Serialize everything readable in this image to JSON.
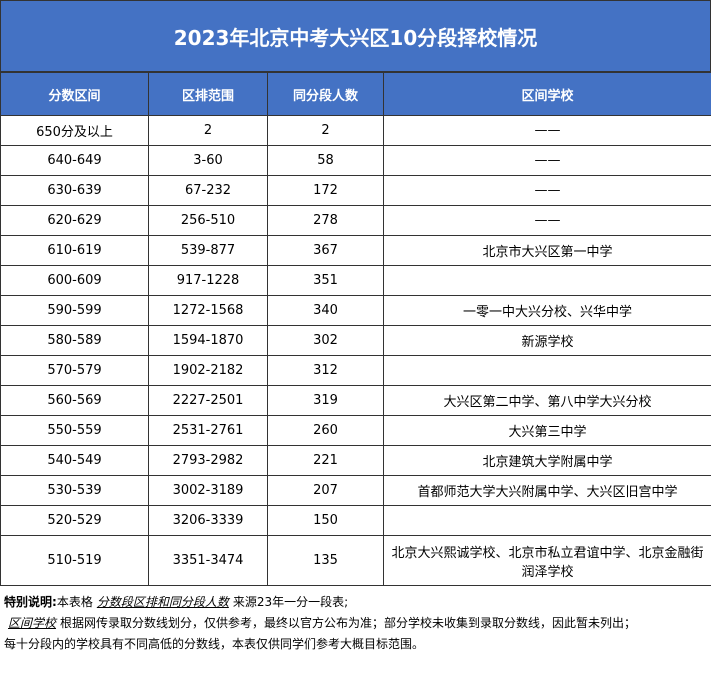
{
  "header": {
    "title": "2023年北京中考大兴区10分段择校情况"
  },
  "table": {
    "columns": [
      "分数区间",
      "区排范围",
      "同分段人数",
      "区间学校"
    ],
    "rows": [
      [
        "650分及以上",
        "2",
        "2",
        "——"
      ],
      [
        "640-649",
        "3-60",
        "58",
        "——"
      ],
      [
        "630-639",
        "67-232",
        "172",
        "——"
      ],
      [
        "620-629",
        "256-510",
        "278",
        "——"
      ],
      [
        "610-619",
        "539-877",
        "367",
        "北京市大兴区第一中学"
      ],
      [
        "600-609",
        "917-1228",
        "351",
        ""
      ],
      [
        "590-599",
        "1272-1568",
        "340",
        "一零一中大兴分校、兴华中学"
      ],
      [
        "580-589",
        "1594-1870",
        "302",
        "新源学校"
      ],
      [
        "570-579",
        "1902-2182",
        "312",
        ""
      ],
      [
        "560-569",
        "2227-2501",
        "319",
        "大兴区第二中学、第八中学大兴分校"
      ],
      [
        "550-559",
        "2531-2761",
        "260",
        "大兴第三中学"
      ],
      [
        "540-549",
        "2793-2982",
        "221",
        "北京建筑大学附属中学"
      ],
      [
        "530-539",
        "3002-3189",
        "207",
        "首都师范大学大兴附属中学、大兴区旧宫中学"
      ],
      [
        "520-529",
        "3206-3339",
        "150",
        ""
      ],
      [
        "510-519",
        "3351-3474",
        "135",
        "北京大兴熙诚学校、北京市私立君谊中学、北京金融街润泽学校"
      ]
    ]
  },
  "notes": [
    [
      "特别说明:",
      "本表格",
      "分数段区排和同分段人数",
      "来源23年一分一段表;"
    ],
    [
      "区间学校",
      "根据网传录取分数线划分，仅供参考，最终以官方公布为准；部分学校未收集到录取分数线，因此暂未列出；"
    ],
    [
      "每十分段内的学校具有不同高低的分数线，本表仅供同学们参考大概目标范围。"
    ]
  ]
}
